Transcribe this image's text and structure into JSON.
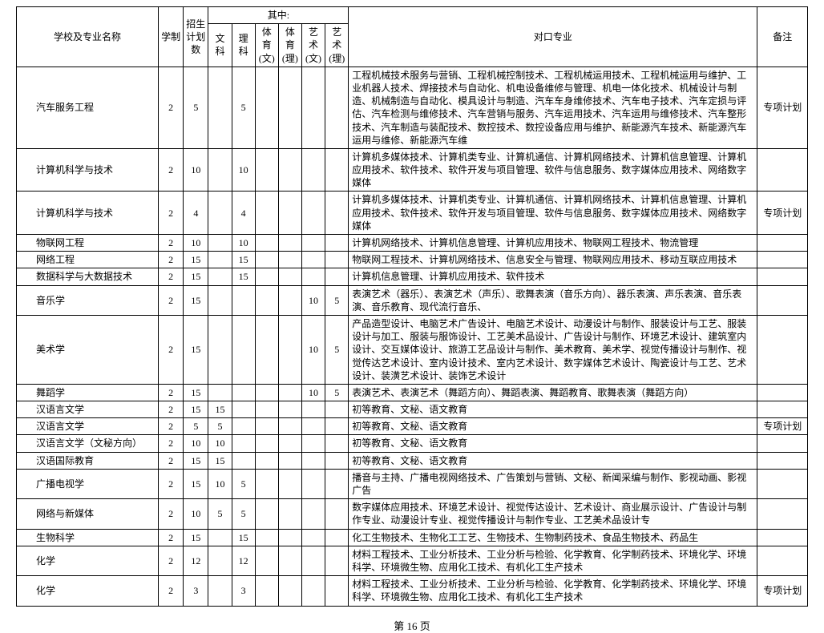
{
  "headers": {
    "school_major": "学校及专业名称",
    "duration": "学制",
    "plan_count": "招生\n计划\n数",
    "category_group": "其中:",
    "wenke": "文科",
    "like": "理科",
    "tiyu_wen": "体育\n(文)",
    "tiyu_li": "体育\n(理)",
    "yishu_wen": "艺术\n(文)",
    "yishu_li": "艺术\n(理)",
    "duikou": "对口专业",
    "remark": "备注"
  },
  "rows": [
    {
      "name": "汽车服务工程",
      "dur": "2",
      "plan": "5",
      "wk": "",
      "lk": "5",
      "tw": "",
      "tl": "",
      "yw": "",
      "yl": "",
      "desc": "工程机械技术服务与营销、工程机械控制技术、工程机械运用技术、工程机械运用与维护、工业机器人技术、焊接技术与自动化、机电设备维修与管理、机电一体化技术、机械设计与制造、机械制造与自动化、模具设计与制造、汽车车身维修技术、汽车电子技术、汽车定损与评估、汽车检测与维修技术、汽车营销与服务、汽车运用技术、汽车运用与维修技术、汽车整形技术、汽车制造与装配技术、数控技术、数控设备应用与维护、新能源汽车技术、新能源汽车运用与维修、新能源汽车维",
      "remark": "专项计划"
    },
    {
      "name": "计算机科学与技术",
      "dur": "2",
      "plan": "10",
      "wk": "",
      "lk": "10",
      "tw": "",
      "tl": "",
      "yw": "",
      "yl": "",
      "desc": "计算机多媒体技术、计算机类专业、计算机通信、计算机网络技术、计算机信息管理、计算机应用技术、软件技术、软件开发与项目管理、软件与信息服务、数字媒体应用技术、网络数字媒体",
      "remark": ""
    },
    {
      "name": "计算机科学与技术",
      "dur": "2",
      "plan": "4",
      "wk": "",
      "lk": "4",
      "tw": "",
      "tl": "",
      "yw": "",
      "yl": "",
      "desc": "计算机多媒体技术、计算机类专业、计算机通信、计算机网络技术、计算机信息管理、计算机应用技术、软件技术、软件开发与项目管理、软件与信息服务、数字媒体应用技术、网络数字媒体",
      "remark": "专项计划"
    },
    {
      "name": "物联网工程",
      "dur": "2",
      "plan": "10",
      "wk": "",
      "lk": "10",
      "tw": "",
      "tl": "",
      "yw": "",
      "yl": "",
      "desc": "计算机网络技术、计算机信息管理、计算机应用技术、物联网工程技术、物流管理",
      "remark": ""
    },
    {
      "name": "网络工程",
      "dur": "2",
      "plan": "15",
      "wk": "",
      "lk": "15",
      "tw": "",
      "tl": "",
      "yw": "",
      "yl": "",
      "desc": "物联网工程技术、计算机网络技术、信息安全与管理、物联网应用技术、移动互联应用技术",
      "remark": ""
    },
    {
      "name": "数据科学与大数据技术",
      "dur": "2",
      "plan": "15",
      "wk": "",
      "lk": "15",
      "tw": "",
      "tl": "",
      "yw": "",
      "yl": "",
      "desc": "计算机信息管理、计算机应用技术、软件技术",
      "remark": ""
    },
    {
      "name": "音乐学",
      "dur": "2",
      "plan": "15",
      "wk": "",
      "lk": "",
      "tw": "",
      "tl": "",
      "yw": "10",
      "yl": "5",
      "desc": "表演艺术（器乐）、表演艺术（声乐）、歌舞表演（音乐方向）、器乐表演、声乐表演、音乐表演、音乐教育、现代流行音乐、",
      "remark": ""
    },
    {
      "name": "美术学",
      "dur": "2",
      "plan": "15",
      "wk": "",
      "lk": "",
      "tw": "",
      "tl": "",
      "yw": "10",
      "yl": "5",
      "desc": "产品造型设计、电脑艺术广告设计、电脑艺术设计、动漫设计与制作、服装设计与工艺、服装设计与加工、服装与服饰设计、工艺美术品设计、广告设计与制作、环境艺术设计、建筑室内设计、交互媒体设计、旅游工艺品设计与制作、美术教育、美术学、视觉传播设计与制作、视觉传达艺术设计、室内设计技术、室内艺术设计、数字媒体艺术设计、陶瓷设计与工艺、艺术设计、装潢艺术设计、装饰艺术设计",
      "remark": ""
    },
    {
      "name": "舞蹈学",
      "dur": "2",
      "plan": "15",
      "wk": "",
      "lk": "",
      "tw": "",
      "tl": "",
      "yw": "10",
      "yl": "5",
      "desc": "表演艺术、表演艺术（舞蹈方向）、舞蹈表演、舞蹈教育、歌舞表演（舞蹈方向）",
      "remark": ""
    },
    {
      "name": "汉语言文学",
      "dur": "2",
      "plan": "15",
      "wk": "15",
      "lk": "",
      "tw": "",
      "tl": "",
      "yw": "",
      "yl": "",
      "desc": "初等教育、文秘、语文教育",
      "remark": ""
    },
    {
      "name": "汉语言文学",
      "dur": "2",
      "plan": "5",
      "wk": "5",
      "lk": "",
      "tw": "",
      "tl": "",
      "yw": "",
      "yl": "",
      "desc": "初等教育、文秘、语文教育",
      "remark": "专项计划"
    },
    {
      "name": "汉语言文学（文秘方向）",
      "dur": "2",
      "plan": "10",
      "wk": "10",
      "lk": "",
      "tw": "",
      "tl": "",
      "yw": "",
      "yl": "",
      "desc": "初等教育、文秘、语文教育",
      "remark": ""
    },
    {
      "name": "汉语国际教育",
      "dur": "2",
      "plan": "15",
      "wk": "15",
      "lk": "",
      "tw": "",
      "tl": "",
      "yw": "",
      "yl": "",
      "desc": "初等教育、文秘、语文教育",
      "remark": ""
    },
    {
      "name": "广播电视学",
      "dur": "2",
      "plan": "15",
      "wk": "10",
      "lk": "5",
      "tw": "",
      "tl": "",
      "yw": "",
      "yl": "",
      "desc": "播音与主持、广播电视网络技术、广告策划与营销、文秘、新闻采编与制作、影视动画、影视广告",
      "remark": ""
    },
    {
      "name": "网络与新媒体",
      "dur": "2",
      "plan": "10",
      "wk": "5",
      "lk": "5",
      "tw": "",
      "tl": "",
      "yw": "",
      "yl": "",
      "desc": "数字媒体应用技术、环境艺术设计、视觉传达设计、艺术设计、商业展示设计、广告设计与制作专业、动漫设计专业、视觉传播设计与制作专业、工艺美术品设计专",
      "remark": ""
    },
    {
      "name": "生物科学",
      "dur": "2",
      "plan": "15",
      "wk": "",
      "lk": "15",
      "tw": "",
      "tl": "",
      "yw": "",
      "yl": "",
      "desc": "化工生物技术、生物化工工艺、生物技术、生物制药技术、食品生物技术、药品生",
      "remark": ""
    },
    {
      "name": "化学",
      "dur": "2",
      "plan": "12",
      "wk": "",
      "lk": "12",
      "tw": "",
      "tl": "",
      "yw": "",
      "yl": "",
      "desc": "材料工程技术、工业分析技术、工业分析与检验、化学教育、化学制药技术、环境化学、环境科学、环境微生物、应用化工技术、有机化工生产技术",
      "remark": ""
    },
    {
      "name": "化学",
      "dur": "2",
      "plan": "3",
      "wk": "",
      "lk": "3",
      "tw": "",
      "tl": "",
      "yw": "",
      "yl": "",
      "desc": "材料工程技术、工业分析技术、工业分析与检验、化学教育、化学制药技术、环境化学、环境科学、环境微生物、应用化工技术、有机化工生产技术",
      "remark": "专项计划"
    }
  ],
  "footer": "第 16 页",
  "col_widths": {
    "name": 170,
    "dur": 30,
    "plan": 30,
    "wk": 28,
    "lk": 28,
    "tw": 28,
    "tl": 28,
    "yw": 28,
    "yl": 28,
    "desc": 490,
    "remark": 60
  },
  "styling": {
    "font_family": "SimSun",
    "font_size_pt": 12,
    "border_color": "#000000",
    "background": "#ffffff",
    "text_color": "#000000",
    "footer_margin_top": 14
  }
}
